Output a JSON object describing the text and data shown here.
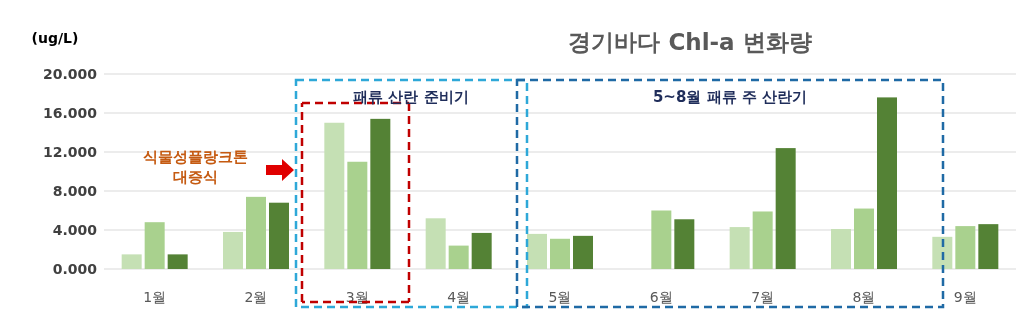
{
  "chart_data": {
    "type": "bar",
    "title": "경기바다 Chl-a 변화량",
    "ylabel": "(ug/L)",
    "categories": [
      "1월",
      "2월",
      "3월",
      "4월",
      "5월",
      "6월",
      "7월",
      "8월",
      "9월"
    ],
    "series": [
      {
        "color": "#c5e0b4",
        "values": [
          1.5,
          3.8,
          15.0,
          5.2,
          3.6,
          null,
          4.3,
          4.1,
          3.3
        ]
      },
      {
        "color": "#a9d18e",
        "values": [
          4.8,
          7.4,
          11.0,
          2.4,
          3.1,
          6.0,
          5.9,
          6.2,
          4.4
        ]
      },
      {
        "color": "#548235",
        "values": [
          1.5,
          6.8,
          15.4,
          3.7,
          3.4,
          5.1,
          12.4,
          17.6,
          4.6
        ]
      }
    ],
    "ylim": [
      0,
      20
    ],
    "yticks": [
      {
        "value": 0,
        "label": "0.000"
      },
      {
        "value": 4,
        "label": "4.000"
      },
      {
        "value": 8,
        "label": "8.000"
      },
      {
        "value": 12,
        "label": "12.000"
      },
      {
        "value": 16,
        "label": "16.000"
      },
      {
        "value": 20,
        "label": "20.000"
      }
    ],
    "grid": "y",
    "annotations": [
      "패류 산란 준비기",
      "5~8월 패류 주 산란기",
      "식물성플랑크톤 대증식"
    ]
  }
}
